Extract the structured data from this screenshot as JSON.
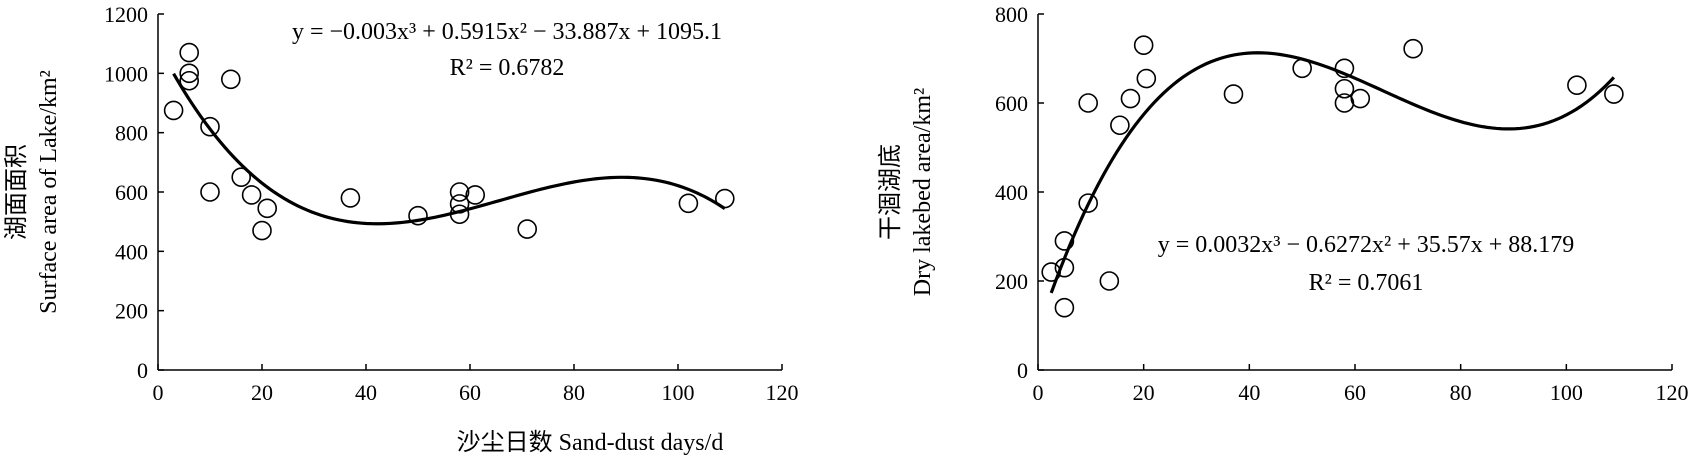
{
  "figure": {
    "common_xlabel": "沙尘日数 Sand-dust days/d"
  },
  "chart_data": [
    {
      "type": "scatter",
      "ylabel_cn": "湖面面积",
      "ylabel_en": "Surface area of Lake/km²",
      "xlim": [
        0,
        120
      ],
      "ylim": [
        0,
        1200
      ],
      "xticks": [
        0,
        20,
        40,
        60,
        80,
        100,
        120
      ],
      "yticks": [
        0,
        200,
        400,
        600,
        800,
        1000,
        1200
      ],
      "equation": "y = −0.003x³ + 0.5915x² − 33.887x + 1095.1",
      "r2_text": "R² = 0.6782",
      "fit": {
        "coefficients": [
          -0.003,
          0.5915,
          -33.887,
          1095.1
        ],
        "x_range": [
          3,
          109
        ]
      },
      "series": [
        {
          "points": [
            [
              3,
              875
            ],
            [
              6,
              1070
            ],
            [
              6,
              1000
            ],
            [
              6,
              975
            ],
            [
              10,
              820
            ],
            [
              10,
              600
            ],
            [
              14,
              980
            ],
            [
              16,
              650
            ],
            [
              18,
              590
            ],
            [
              20,
              470
            ],
            [
              21,
              545
            ],
            [
              37,
              580
            ],
            [
              50,
              520
            ],
            [
              58,
              600
            ],
            [
              58,
              560
            ],
            [
              58,
              525
            ],
            [
              61,
              590
            ],
            [
              71,
              475
            ],
            [
              102,
              562
            ],
            [
              109,
              578
            ]
          ]
        }
      ]
    },
    {
      "type": "scatter",
      "ylabel_cn": "干涸湖底",
      "ylabel_en": "Dry lakebed area/km²",
      "xlim": [
        0,
        120
      ],
      "ylim": [
        0,
        800
      ],
      "xticks": [
        0,
        20,
        40,
        60,
        80,
        100,
        120
      ],
      "yticks": [
        0,
        200,
        400,
        600,
        800
      ],
      "equation": "y = 0.0032x³ − 0.6272x² + 35.57x + 88.179",
      "r2_text": "R² = 0.7061",
      "fit": {
        "coefficients": [
          0.0032,
          -0.6272,
          35.57,
          88.179
        ],
        "x_range": [
          2.5,
          109
        ]
      },
      "series": [
        {
          "points": [
            [
              2.5,
              220
            ],
            [
              5,
              140
            ],
            [
              5,
              230
            ],
            [
              5,
              290
            ],
            [
              9.5,
              375
            ],
            [
              9.5,
              600
            ],
            [
              13.5,
              200
            ],
            [
              15.5,
              550
            ],
            [
              17.5,
              610
            ],
            [
              20,
              730
            ],
            [
              20.5,
              655
            ],
            [
              37,
              620
            ],
            [
              50,
              678
            ],
            [
              58,
              678
            ],
            [
              58,
              632
            ],
            [
              58,
              600
            ],
            [
              61,
              610
            ],
            [
              71,
              722
            ],
            [
              102,
              640
            ],
            [
              109,
              620
            ]
          ]
        }
      ]
    }
  ]
}
